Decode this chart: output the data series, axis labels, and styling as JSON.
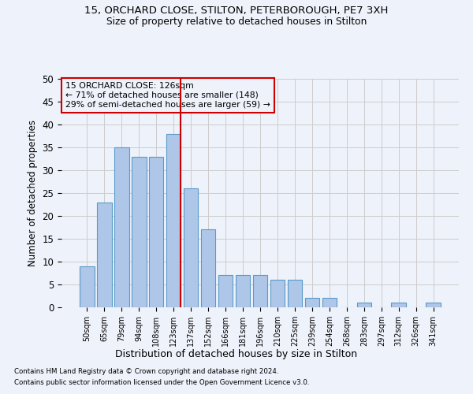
{
  "title1": "15, ORCHARD CLOSE, STILTON, PETERBOROUGH, PE7 3XH",
  "title2": "Size of property relative to detached houses in Stilton",
  "xlabel": "Distribution of detached houses by size in Stilton",
  "ylabel": "Number of detached properties",
  "categories": [
    "50sqm",
    "65sqm",
    "79sqm",
    "94sqm",
    "108sqm",
    "123sqm",
    "137sqm",
    "152sqm",
    "166sqm",
    "181sqm",
    "196sqm",
    "210sqm",
    "225sqm",
    "239sqm",
    "254sqm",
    "268sqm",
    "283sqm",
    "297sqm",
    "312sqm",
    "326sqm",
    "341sqm"
  ],
  "values": [
    9,
    23,
    35,
    33,
    33,
    38,
    26,
    17,
    7,
    7,
    7,
    6,
    6,
    2,
    2,
    0,
    1,
    0,
    1,
    0,
    1
  ],
  "bar_color": "#aec6e8",
  "bar_edge_color": "#5a9ac8",
  "highlight_index": 5,
  "highlight_line_color": "#cc0000",
  "ylim": [
    0,
    50
  ],
  "yticks": [
    0,
    5,
    10,
    15,
    20,
    25,
    30,
    35,
    40,
    45,
    50
  ],
  "annotation_line1": "15 ORCHARD CLOSE: 126sqm",
  "annotation_line2": "← 71% of detached houses are smaller (148)",
  "annotation_line3": "29% of semi-detached houses are larger (59) →",
  "annotation_box_color": "#cc0000",
  "footnote1": "Contains HM Land Registry data © Crown copyright and database right 2024.",
  "footnote2": "Contains public sector information licensed under the Open Government Licence v3.0.",
  "bg_color": "#eef2fa"
}
